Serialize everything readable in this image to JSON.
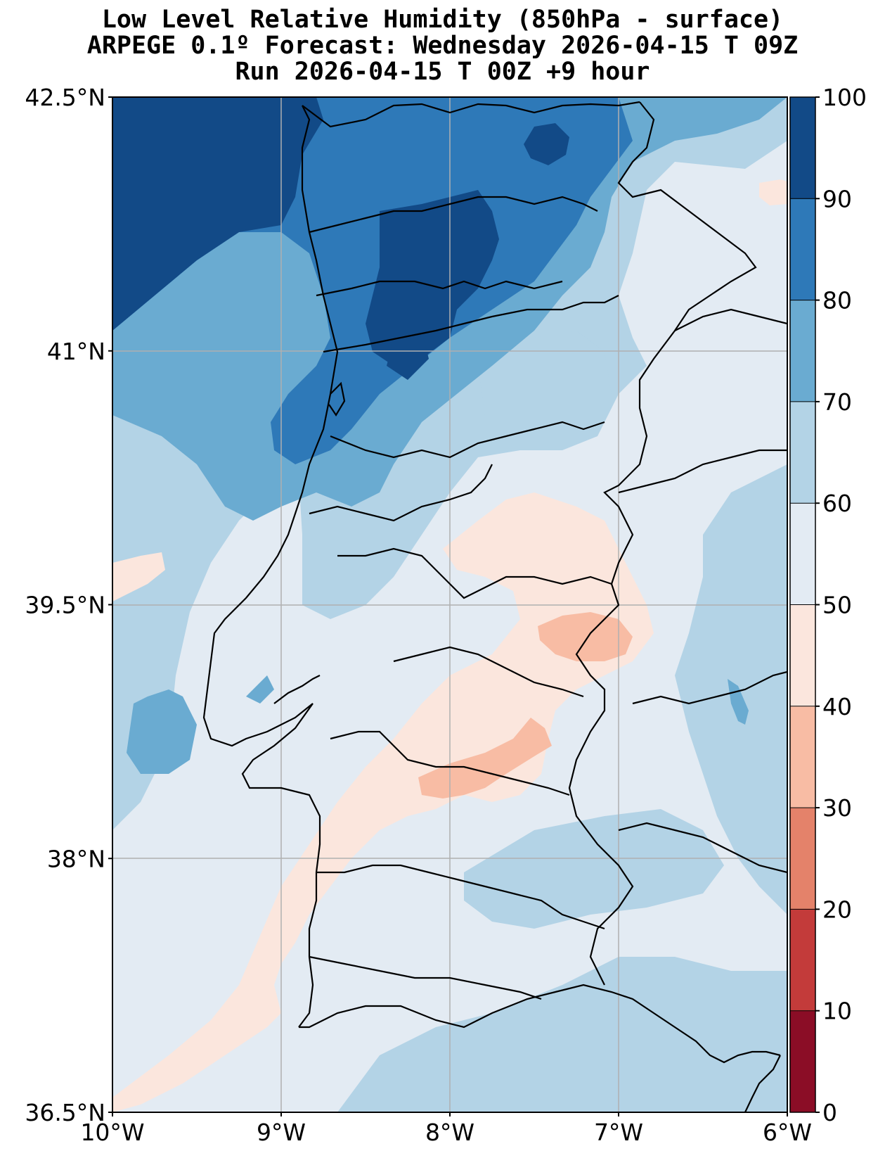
{
  "title": {
    "line1": "Low Level Relative Humidity (850hPa - surface)",
    "line2": "ARPEGE 0.1º Forecast: Wednesday 2026-04-15 T 09Z",
    "line3": "Run 2026-04-15 T 00Z +9 hour"
  },
  "map": {
    "lon_range": [
      -10,
      -6
    ],
    "lat_range": [
      36.5,
      42.5
    ],
    "lon_ticks": [
      {
        "value": -10,
        "label": "10°W"
      },
      {
        "value": -9,
        "label": "9°W"
      },
      {
        "value": -8,
        "label": "8°W"
      },
      {
        "value": -7,
        "label": "7°W"
      },
      {
        "value": -6,
        "label": "6°W"
      }
    ],
    "lat_ticks": [
      {
        "value": 42.5,
        "label": "42.5°N"
      },
      {
        "value": 41,
        "label": "41°N"
      },
      {
        "value": 39.5,
        "label": "39.5°N"
      },
      {
        "value": 38,
        "label": "38°N"
      },
      {
        "value": 36.5,
        "label": "36.5°N"
      }
    ],
    "gridlines": true
  },
  "colorbar": {
    "levels": [
      0,
      10,
      20,
      30,
      40,
      50,
      60,
      70,
      80,
      90,
      100
    ],
    "labels": [
      "0",
      "10",
      "20",
      "30",
      "40",
      "50",
      "60",
      "70",
      "80",
      "90",
      "100"
    ],
    "colors": [
      "#8b0d26",
      "#c33b3a",
      "#e4826a",
      "#f8bca4",
      "#fbe6dd",
      "#e3ebf3",
      "#b3d3e6",
      "#6aabd1",
      "#2e79b8",
      "#124a87"
    ]
  },
  "colors": {
    "frame": "#000000",
    "grid": "#b0b0b0",
    "coast": "#000000"
  }
}
